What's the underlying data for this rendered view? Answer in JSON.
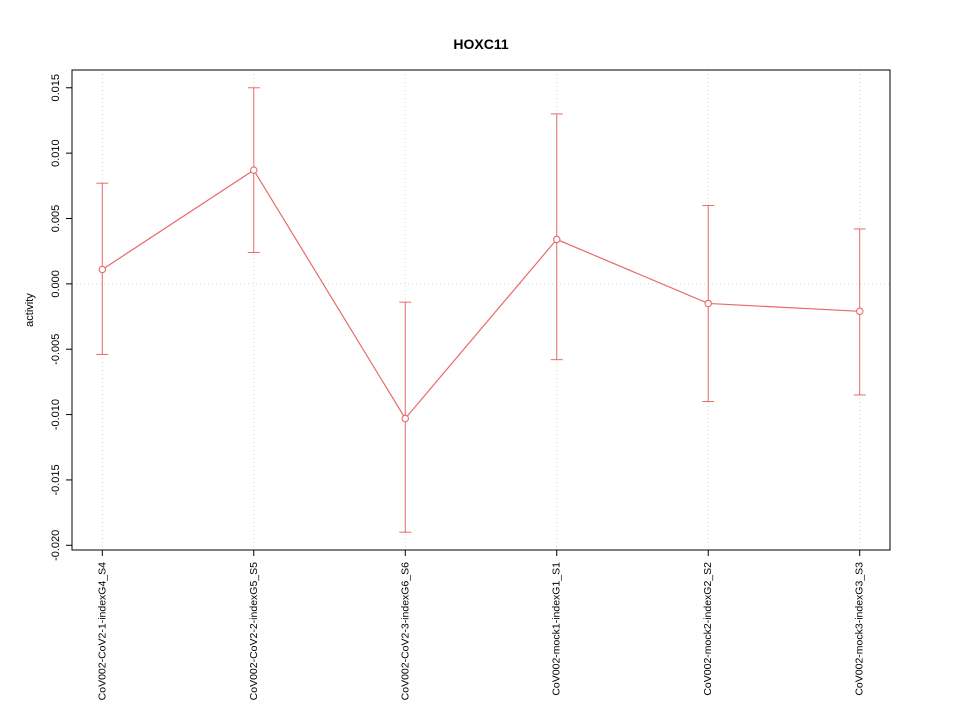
{
  "chart_data": {
    "type": "line",
    "title": "HOXC11",
    "xlabel": "",
    "ylabel": "activity",
    "categories": [
      "CoV002-CoV2-1-indexG4_S4",
      "CoV002-CoV2-2-indexG5_S5",
      "CoV002-CoV2-3-indexG6_S6",
      "CoV002-mock1-indexG1_S1",
      "CoV002-mock2-indexG2_S2",
      "CoV002-mock3-indexG3_S3"
    ],
    "values": [
      0.0011,
      0.0087,
      -0.0103,
      0.0034,
      -0.0015,
      -0.0021
    ],
    "error_low": [
      -0.0054,
      0.0024,
      -0.019,
      -0.0058,
      -0.009,
      -0.0085
    ],
    "error_high": [
      0.0077,
      0.015,
      -0.0014,
      0.013,
      0.006,
      0.0042
    ],
    "ylim": [
      -0.02,
      0.015
    ],
    "yticks": [
      -0.02,
      -0.015,
      -0.01,
      -0.005,
      0.0,
      0.005,
      0.01,
      0.015
    ],
    "ytick_labels": [
      "-0.020",
      "-0.015",
      "-0.010",
      "-0.005",
      "0.000",
      "0.005",
      "0.010",
      "0.015"
    ],
    "legend": "none",
    "grid": "dotted vertical lines at each category and dotted horizontal line at zero",
    "marker": "open-circle",
    "colors": {
      "series": "#e96a6a",
      "grid": "#d4d4d4",
      "axis": "#000000",
      "background": "#ffffff"
    }
  }
}
